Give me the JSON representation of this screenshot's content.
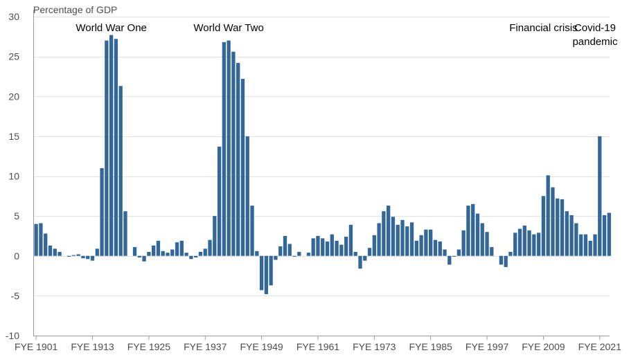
{
  "chart_data": {
    "type": "bar",
    "ylabel": "Percentage of GDP",
    "ylim": [
      -10,
      30
    ],
    "yticks": [
      -10,
      -5,
      0,
      5,
      10,
      15,
      20,
      25,
      30
    ],
    "grid": true,
    "color": "#336699",
    "x": [
      1901,
      1902,
      1903,
      1904,
      1905,
      1906,
      1907,
      1908,
      1909,
      1910,
      1911,
      1912,
      1913,
      1914,
      1915,
      1916,
      1917,
      1918,
      1919,
      1920,
      1921,
      1922,
      1923,
      1924,
      1925,
      1926,
      1927,
      1928,
      1929,
      1930,
      1931,
      1932,
      1933,
      1934,
      1935,
      1936,
      1937,
      1938,
      1939,
      1940,
      1941,
      1942,
      1943,
      1944,
      1945,
      1946,
      1947,
      1948,
      1949,
      1950,
      1951,
      1952,
      1953,
      1954,
      1955,
      1956,
      1957,
      1958,
      1959,
      1960,
      1961,
      1962,
      1963,
      1964,
      1965,
      1966,
      1967,
      1968,
      1969,
      1970,
      1971,
      1972,
      1973,
      1974,
      1975,
      1976,
      1977,
      1978,
      1979,
      1980,
      1981,
      1982,
      1983,
      1984,
      1985,
      1986,
      1987,
      1988,
      1989,
      1990,
      1991,
      1992,
      1993,
      1994,
      1995,
      1996,
      1997,
      1998,
      1999,
      2000,
      2001,
      2002,
      2003,
      2004,
      2005,
      2006,
      2007,
      2008,
      2009,
      2010,
      2011,
      2012,
      2013,
      2014,
      2015,
      2016,
      2017,
      2018,
      2019,
      2020,
      2021,
      2022,
      2023
    ],
    "values": [
      4.0,
      4.1,
      2.8,
      1.3,
      0.9,
      0.5,
      0.0,
      -0.1,
      0.1,
      0.2,
      -0.3,
      -0.4,
      -0.6,
      0.9,
      11.0,
      27.0,
      27.7,
      27.2,
      21.3,
      5.6,
      0.0,
      1.1,
      -0.2,
      -0.7,
      0.5,
      1.3,
      1.9,
      0.6,
      0.4,
      0.8,
      1.7,
      1.9,
      0.4,
      -0.4,
      -0.2,
      0.5,
      0.9,
      2.0,
      5.0,
      13.7,
      26.8,
      27.0,
      25.6,
      24.2,
      22.2,
      15.0,
      6.3,
      0.6,
      -4.3,
      -4.8,
      -3.7,
      -0.5,
      1.2,
      2.5,
      1.5,
      -0.1,
      0.5,
      0.0,
      0.4,
      2.2,
      2.5,
      2.2,
      1.8,
      2.7,
      1.9,
      1.4,
      2.4,
      3.9,
      0.5,
      -1.6,
      -0.6,
      1.0,
      2.6,
      4.1,
      5.6,
      6.3,
      4.9,
      3.9,
      4.5,
      3.7,
      4.2,
      1.9,
      2.6,
      3.3,
      3.3,
      2.0,
      1.8,
      0.8,
      -1.1,
      -0.1,
      0.8,
      3.2,
      6.3,
      6.5,
      5.3,
      4.1,
      3.0,
      1.1,
      0.0,
      -1.1,
      -1.4,
      0.5,
      2.9,
      3.4,
      3.8,
      3.2,
      2.7,
      2.9,
      7.5,
      10.1,
      8.6,
      7.2,
      7.1,
      5.6,
      5.1,
      4.1,
      2.7,
      2.7,
      1.9,
      2.7,
      15.0,
      5.1,
      5.4
    ],
    "xticks": [
      "FYE 1901",
      "FYE 1913",
      "FYE 1925",
      "FYE 1937",
      "FYE 1949",
      "FYE 1961",
      "FYE 1973",
      "FYE 1985",
      "FYE 1997",
      "FYE 2009",
      "FYE 2021"
    ],
    "xtick_years": [
      1901,
      1913,
      1925,
      1937,
      1949,
      1961,
      1973,
      1985,
      1997,
      2009,
      2021
    ],
    "annotations": [
      {
        "lines": [
          "World War One"
        ],
        "year": 1917
      },
      {
        "lines": [
          "World War Two"
        ],
        "year": 1942
      },
      {
        "lines": [
          "Financial crisis"
        ],
        "year": 2009
      },
      {
        "lines": [
          "Covid-19",
          "pandemic"
        ],
        "year": 2020
      }
    ]
  }
}
